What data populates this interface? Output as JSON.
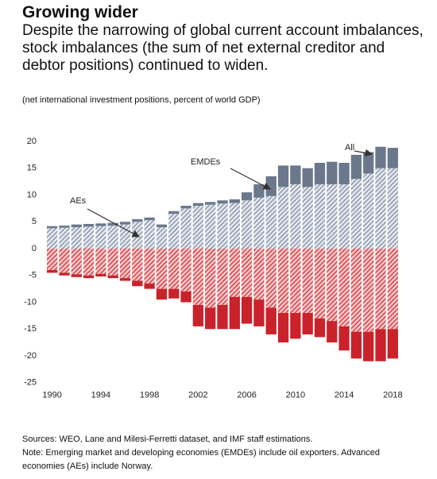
{
  "chart_data": {
    "type": "bar",
    "title": "Growing wider",
    "subtitle": "Despite the narrowing of global current account imbalances, stock imbalances (the sum of net external creditor and debtor positions) continued to widen.",
    "y_label": "(net international investment positions, percent of world GDP)",
    "categories": [
      "1990",
      null,
      null,
      null,
      "1994",
      null,
      null,
      null,
      "1998",
      null,
      null,
      null,
      "2002",
      null,
      null,
      null,
      "2006",
      null,
      null,
      null,
      "2010",
      null,
      null,
      null,
      "2014",
      null,
      null,
      null,
      "2018"
    ],
    "series": [
      {
        "name": "AEs",
        "color": "#9aa6b8",
        "negative_color": "#e0575c",
        "values": [
          3.8,
          3.9,
          4.0,
          4.1,
          4.2,
          4.3,
          4.5,
          5.0,
          5.3,
          4.0,
          6.5,
          7.5,
          8.0,
          8.2,
          8.4,
          8.5,
          9.0,
          9.5,
          9.8,
          11.5,
          12.0,
          11.5,
          12.0,
          12.0,
          12.0,
          13.0,
          14.0,
          15.0,
          15.0
        ],
        "negative_values": [
          -4.0,
          -4.5,
          -4.8,
          -5.0,
          -4.7,
          -5.0,
          -5.5,
          -6.0,
          -6.5,
          -7.5,
          -7.5,
          -8.0,
          -10.5,
          -11.0,
          -10.5,
          -9.0,
          -9.0,
          -9.5,
          -11.0,
          -12.0,
          -12.0,
          -12.0,
          -13.0,
          -13.5,
          -14.5,
          -15.5,
          -15.5,
          -15.0,
          -15.0
        ]
      },
      {
        "name": "EMDEs",
        "color": "#6b788c",
        "negative_color": "#c9222b",
        "values": [
          0.4,
          0.4,
          0.5,
          0.5,
          0.5,
          0.5,
          0.5,
          0.5,
          0.5,
          0.5,
          0.5,
          0.5,
          0.5,
          0.5,
          0.6,
          0.7,
          1.5,
          2.5,
          3.7,
          4.0,
          3.5,
          3.5,
          4.0,
          4.2,
          4.0,
          4.5,
          4.0,
          4.0,
          3.8
        ],
        "negative_values": [
          -0.5,
          -0.5,
          -0.5,
          -0.5,
          -0.5,
          -0.5,
          -0.5,
          -1.0,
          -1.0,
          -2.0,
          -1.8,
          -2.0,
          -4.0,
          -4.0,
          -4.5,
          -6.0,
          -5.0,
          -5.0,
          -5.0,
          -5.5,
          -4.8,
          -4.0,
          -3.5,
          -4.0,
          -4.5,
          -5.0,
          -5.5,
          -6.0,
          -5.5
        ]
      }
    ],
    "total_label": "All",
    "ylim": [
      -25,
      20
    ],
    "yticks": [
      -25,
      -20,
      -15,
      -10,
      -5,
      0,
      5,
      10,
      15,
      20
    ],
    "grid": false,
    "notes": [
      "Sources: WEO, Lane and Milesi-Ferretti dataset, and IMF staff estimations.",
      "Note: Emerging market and developing economies (EMDEs) include oil exporters. Advanced economies (AEs) include Norway."
    ]
  }
}
